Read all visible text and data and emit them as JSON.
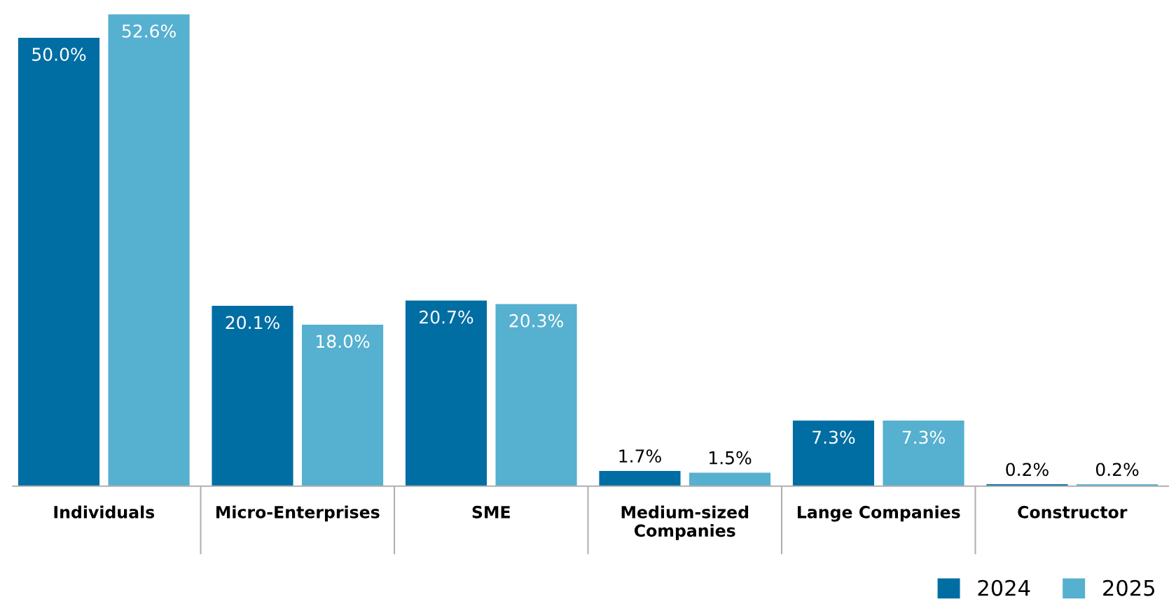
{
  "chart_data": {
    "type": "bar",
    "categories": [
      "Individuals",
      "Micro-Enterprises",
      "SME",
      "Medium-sized\nCompanies",
      "Lange Companies",
      "Constructor"
    ],
    "series": [
      {
        "name": "2024",
        "color": "#006da3",
        "values": [
          50.0,
          20.1,
          20.7,
          1.7,
          7.3,
          0.2
        ],
        "value_labels": [
          "50.0%",
          "20.1%",
          "20.7%",
          "1.7%",
          "7.3%",
          "0.2%"
        ]
      },
      {
        "name": "2025",
        "color": "#56b0cf",
        "values": [
          52.6,
          18.0,
          20.3,
          1.5,
          7.3,
          0.2
        ],
        "value_labels": [
          "52.6%",
          "18.0%",
          "20.3%",
          "1.5%",
          "7.3%",
          "0.2%"
        ]
      }
    ],
    "legend": "bottom right",
    "grid": false
  }
}
